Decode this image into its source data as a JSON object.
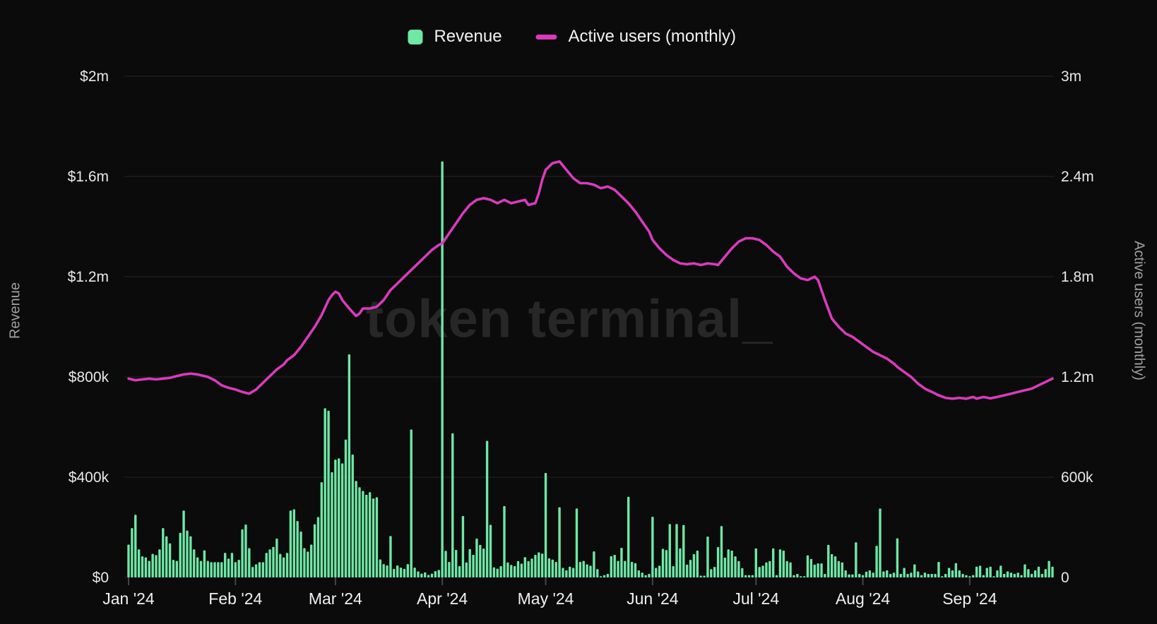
{
  "watermark": "token terminal_",
  "legend": [
    {
      "label": "Revenue",
      "type": "bar",
      "color": "#6fe7a5"
    },
    {
      "label": "Active users (monthly)",
      "type": "line",
      "color": "#d93bbd"
    }
  ],
  "colors": {
    "background": "#0b0b0b",
    "gridline": "#242424",
    "bar": "#6fe7a5",
    "line": "#d93bbd",
    "tick_text": "#e8e8e8",
    "watermark": "#272727"
  },
  "chart_data": {
    "type": "bar+line",
    "title": "",
    "x_start_date": "2024-01-01",
    "x_end_date": "2024-09-25",
    "x_tick_labels": [
      "Jan '24",
      "Feb '24",
      "Mar '24",
      "Apr '24",
      "May '24",
      "Jun '24",
      "Jul '24",
      "Aug '24",
      "Sep '24"
    ],
    "x_tick_day_index": [
      0,
      31,
      60,
      91,
      121,
      152,
      182,
      213,
      244
    ],
    "left_axis": {
      "title": "Revenue",
      "tick_labels_top_to_bottom": [
        "$2m",
        "$1.6m",
        "$1.2m",
        "$800k",
        "$400k",
        "$0"
      ],
      "range_usd": [
        0,
        2000000
      ]
    },
    "right_axis": {
      "title": "Active users (monthly)",
      "tick_labels_top_to_bottom": [
        "3m",
        "2.4m",
        "1.8m",
        "1.2m",
        "600k",
        "0"
      ],
      "range_users": [
        0,
        3000000
      ]
    },
    "grid": "horizontal",
    "legend_position": "top-center",
    "series": [
      {
        "name": "Revenue",
        "type": "bar",
        "unit": "USD thousands per day",
        "values_k": [
          131,
          197,
          250,
          112,
          84,
          80,
          66,
          94,
          89,
          112,
          197,
          164,
          136,
          70,
          66,
          178,
          267,
          187,
          164,
          112,
          80,
          66,
          108,
          66,
          61,
          61,
          61,
          61,
          98,
          75,
          98,
          61,
          70,
          192,
          211,
          117,
          42,
          52,
          61,
          61,
          98,
          112,
          122,
          155,
          94,
          80,
          98,
          267,
          272,
          225,
          183,
          117,
          103,
          131,
          212,
          241,
          380,
          675,
          665,
          420,
          470,
          475,
          455,
          550,
          890,
          490,
          385,
          360,
          345,
          330,
          340,
          315,
          320,
          72,
          53,
          48,
          165,
          34,
          48,
          39,
          34,
          53,
          590,
          39,
          24,
          15,
          20,
          10,
          15,
          25,
          30,
          1660,
          106,
          62,
          575,
          110,
          45,
          245,
          60,
          113,
          90,
          155,
          130,
          115,
          545,
          210,
          40,
          35,
          45,
          285,
          60,
          50,
          45,
          65,
          55,
          81,
          65,
          75,
          90,
          100,
          95,
          417,
          76,
          71,
          62,
          280,
          38,
          28,
          43,
          38,
          275,
          62,
          66,
          52,
          47,
          104,
          33,
          5,
          9,
          14,
          85,
          90,
          66,
          118,
          66,
          322,
          62,
          57,
          28,
          19,
          9,
          14,
          242,
          38,
          47,
          114,
          109,
          213,
          45,
          213,
          116,
          209,
          51,
          70,
          93,
          107,
          7,
          7,
          163,
          33,
          42,
          121,
          205,
          79,
          112,
          107,
          84,
          65,
          37,
          9,
          9,
          9,
          116,
          42,
          47,
          60,
          65,
          116,
          9,
          112,
          107,
          65,
          60,
          9,
          14,
          5,
          5,
          88,
          74,
          51,
          56,
          56,
          14,
          130,
          93,
          84,
          65,
          60,
          28,
          12,
          12,
          140,
          14,
          9,
          23,
          28,
          19,
          126,
          275,
          24,
          28,
          14,
          19,
          156,
          14,
          38,
          14,
          19,
          52,
          24,
          9,
          19,
          14,
          14,
          14,
          62,
          5,
          14,
          38,
          28,
          57,
          28,
          14,
          9,
          5,
          9,
          43,
          47,
          9,
          38,
          43,
          5,
          28,
          47,
          14,
          24,
          19,
          14,
          19,
          9,
          52,
          33,
          14,
          28,
          43,
          14,
          33,
          66,
          43
        ]
      },
      {
        "name": "Active users (monthly)",
        "type": "line",
        "unit": "millions of users",
        "points_day_value_m": [
          [
            0,
            1.19
          ],
          [
            2,
            1.18
          ],
          [
            4,
            1.185
          ],
          [
            6,
            1.19
          ],
          [
            8,
            1.185
          ],
          [
            10,
            1.19
          ],
          [
            12,
            1.195
          ],
          [
            14,
            1.205
          ],
          [
            16,
            1.215
          ],
          [
            18,
            1.22
          ],
          [
            20,
            1.215
          ],
          [
            22,
            1.205
          ],
          [
            23,
            1.2
          ],
          [
            25,
            1.18
          ],
          [
            27,
            1.15
          ],
          [
            29,
            1.135
          ],
          [
            31,
            1.125
          ],
          [
            33,
            1.11
          ],
          [
            35,
            1.1
          ],
          [
            37,
            1.125
          ],
          [
            39,
            1.165
          ],
          [
            41,
            1.205
          ],
          [
            43,
            1.245
          ],
          [
            45,
            1.275
          ],
          [
            46,
            1.3
          ],
          [
            48,
            1.33
          ],
          [
            50,
            1.38
          ],
          [
            52,
            1.44
          ],
          [
            54,
            1.5
          ],
          [
            56,
            1.57
          ],
          [
            58,
            1.66
          ],
          [
            59,
            1.69
          ],
          [
            60,
            1.71
          ],
          [
            61,
            1.7
          ],
          [
            62,
            1.66
          ],
          [
            64,
            1.61
          ],
          [
            66,
            1.565
          ],
          [
            67,
            1.58
          ],
          [
            68,
            1.61
          ],
          [
            70,
            1.61
          ],
          [
            72,
            1.62
          ],
          [
            74,
            1.66
          ],
          [
            76,
            1.72
          ],
          [
            78,
            1.76
          ],
          [
            80,
            1.8
          ],
          [
            82,
            1.84
          ],
          [
            84,
            1.88
          ],
          [
            86,
            1.92
          ],
          [
            88,
            1.96
          ],
          [
            90,
            1.99
          ],
          [
            91,
            2.0
          ],
          [
            93,
            2.06
          ],
          [
            95,
            2.12
          ],
          [
            97,
            2.18
          ],
          [
            99,
            2.23
          ],
          [
            101,
            2.26
          ],
          [
            103,
            2.27
          ],
          [
            105,
            2.26
          ],
          [
            107,
            2.24
          ],
          [
            109,
            2.26
          ],
          [
            111,
            2.24
          ],
          [
            113,
            2.25
          ],
          [
            115,
            2.26
          ],
          [
            116,
            2.23
          ],
          [
            118,
            2.24
          ],
          [
            119,
            2.3
          ],
          [
            120,
            2.38
          ],
          [
            121,
            2.44
          ],
          [
            123,
            2.48
          ],
          [
            125,
            2.49
          ],
          [
            127,
            2.44
          ],
          [
            129,
            2.39
          ],
          [
            131,
            2.36
          ],
          [
            133,
            2.36
          ],
          [
            135,
            2.35
          ],
          [
            137,
            2.33
          ],
          [
            139,
            2.34
          ],
          [
            141,
            2.32
          ],
          [
            143,
            2.28
          ],
          [
            145,
            2.24
          ],
          [
            147,
            2.19
          ],
          [
            149,
            2.13
          ],
          [
            151,
            2.07
          ],
          [
            152,
            2.02
          ],
          [
            154,
            1.97
          ],
          [
            156,
            1.93
          ],
          [
            158,
            1.9
          ],
          [
            160,
            1.88
          ],
          [
            162,
            1.875
          ],
          [
            164,
            1.88
          ],
          [
            166,
            1.87
          ],
          [
            168,
            1.88
          ],
          [
            170,
            1.875
          ],
          [
            171,
            1.87
          ],
          [
            173,
            1.92
          ],
          [
            175,
            1.97
          ],
          [
            177,
            2.01
          ],
          [
            179,
            2.03
          ],
          [
            181,
            2.03
          ],
          [
            183,
            2.02
          ],
          [
            185,
            1.99
          ],
          [
            187,
            1.95
          ],
          [
            189,
            1.92
          ],
          [
            191,
            1.86
          ],
          [
            193,
            1.82
          ],
          [
            195,
            1.79
          ],
          [
            197,
            1.78
          ],
          [
            199,
            1.8
          ],
          [
            200,
            1.78
          ],
          [
            202,
            1.66
          ],
          [
            204,
            1.55
          ],
          [
            206,
            1.5
          ],
          [
            208,
            1.46
          ],
          [
            210,
            1.44
          ],
          [
            212,
            1.41
          ],
          [
            214,
            1.38
          ],
          [
            216,
            1.35
          ],
          [
            218,
            1.33
          ],
          [
            220,
            1.31
          ],
          [
            222,
            1.28
          ],
          [
            223,
            1.26
          ],
          [
            225,
            1.23
          ],
          [
            227,
            1.2
          ],
          [
            229,
            1.16
          ],
          [
            231,
            1.13
          ],
          [
            233,
            1.11
          ],
          [
            235,
            1.09
          ],
          [
            237,
            1.075
          ],
          [
            239,
            1.07
          ],
          [
            241,
            1.075
          ],
          [
            243,
            1.07
          ],
          [
            245,
            1.08
          ],
          [
            246,
            1.07
          ],
          [
            248,
            1.08
          ],
          [
            250,
            1.072
          ],
          [
            252,
            1.08
          ],
          [
            254,
            1.09
          ],
          [
            256,
            1.1
          ],
          [
            258,
            1.11
          ],
          [
            260,
            1.12
          ],
          [
            262,
            1.13
          ],
          [
            264,
            1.15
          ],
          [
            266,
            1.17
          ],
          [
            268,
            1.19
          ]
        ]
      }
    ]
  }
}
